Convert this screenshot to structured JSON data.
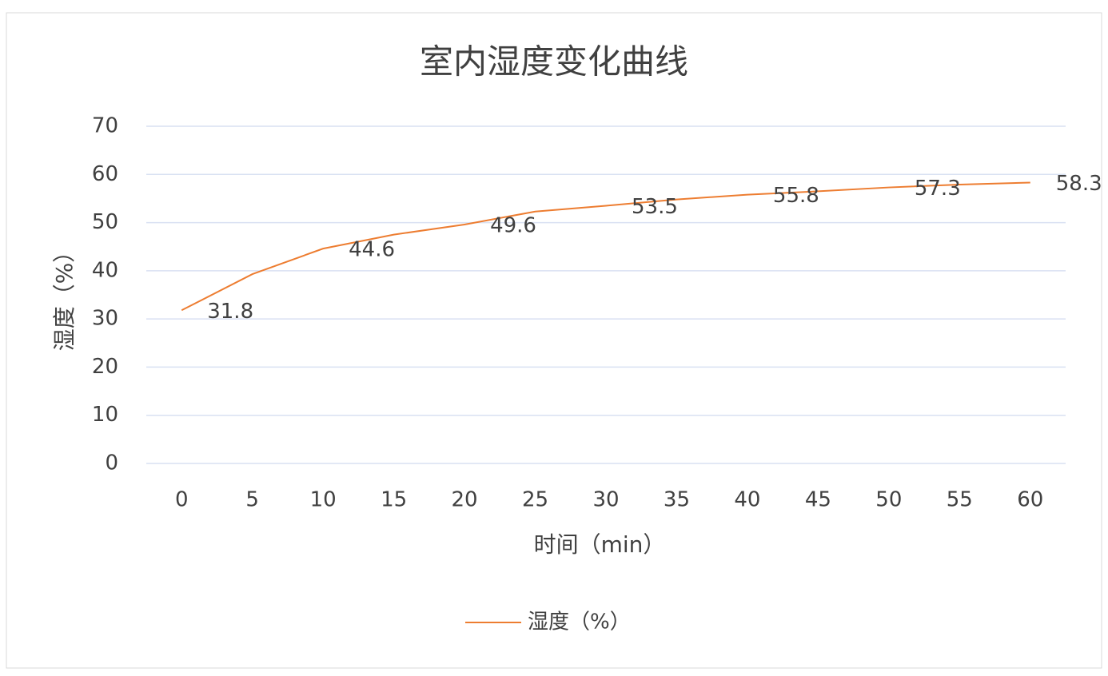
{
  "chart_data": {
    "type": "line",
    "title": "室内湿度变化曲线",
    "x_label": "时间（min）",
    "y_label": "湿度（%）",
    "categories": [
      0,
      5,
      10,
      15,
      20,
      25,
      30,
      35,
      40,
      45,
      50,
      55,
      60
    ],
    "series": [
      {
        "name": "湿度（%）",
        "color": "#ed7d31",
        "values": [
          31.8,
          39.3,
          44.6,
          47.5,
          49.6,
          52.3,
          53.5,
          54.8,
          55.8,
          56.5,
          57.3,
          57.9,
          58.3
        ],
        "value_labels": [
          "31.8",
          null,
          "44.6",
          null,
          "49.6",
          null,
          "53.5",
          null,
          "55.8",
          null,
          "57.3",
          null,
          "58.3"
        ]
      }
    ],
    "ylim": [
      0,
      70
    ],
    "yticks": [
      0,
      10,
      20,
      30,
      40,
      50,
      60,
      70
    ],
    "grid": true,
    "legend": "bottom"
  }
}
